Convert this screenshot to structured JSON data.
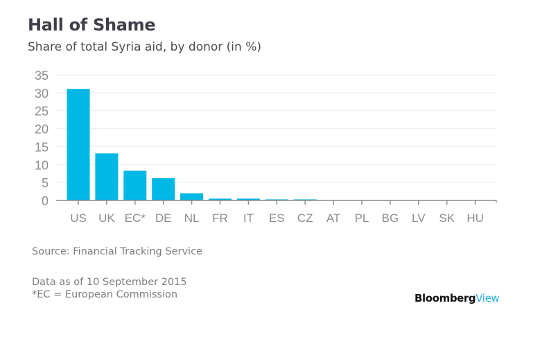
{
  "header": {
    "title": "Hall of Shame",
    "subtitle": "Share of total Syria aid, by donor (in %)"
  },
  "footer": {
    "source": "Source: Financial Tracking Service",
    "as_of": "Data as of 10 September 2015",
    "note": "*EC = European Commission",
    "logo_primary": "Bloomberg",
    "logo_secondary": "View"
  },
  "colors": {
    "bar": "#00b8e6",
    "grid": "#ebebeb",
    "axis": "#8a8a8a",
    "tick_label": "#8c8c8c"
  },
  "chart_data": {
    "type": "bar",
    "title": "Hall of Shame",
    "subtitle": "Share of total Syria aid, by donor (in %)",
    "xlabel": "",
    "ylabel": "",
    "categories": [
      "US",
      "UK",
      "EC*",
      "DE",
      "NL",
      "FR",
      "IT",
      "ES",
      "CZ",
      "AT",
      "PL",
      "BG",
      "LV",
      "SK",
      "HU"
    ],
    "values": [
      31.1,
      13.1,
      8.3,
      6.2,
      2.0,
      0.5,
      0.5,
      0.3,
      0.3,
      0.05,
      0.02,
      0.01,
      0.01,
      0.01,
      0.01
    ],
    "ylim": [
      0,
      35
    ],
    "yticks": [
      0,
      5,
      10,
      15,
      20,
      25,
      30,
      35
    ],
    "grid": true,
    "legend": "none"
  }
}
